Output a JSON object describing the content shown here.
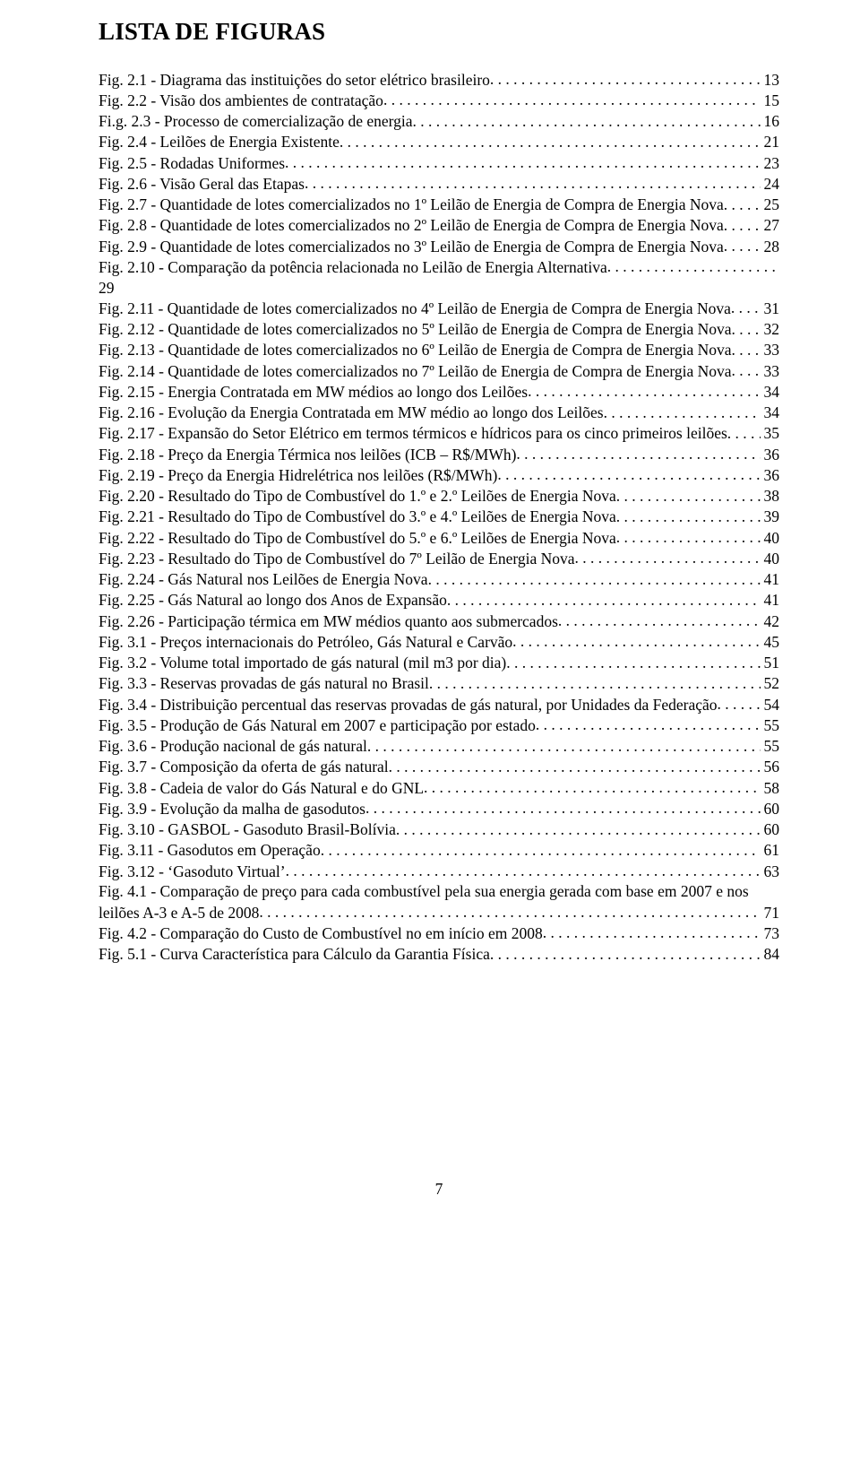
{
  "title": "LISTA DE FIGURAS",
  "page_number": "7",
  "font": {
    "family": "Times New Roman",
    "title_size_pt": 20,
    "body_size_pt": 13,
    "title_weight": "bold"
  },
  "colors": {
    "text": "#000000",
    "background": "#ffffff"
  },
  "entries": [
    {
      "label": "Fig. 2.1 - Diagrama das instituições do setor elétrico brasileiro",
      "page": "13"
    },
    {
      "label": "Fig. 2.2 - Visão dos ambientes de contratação ",
      "page": "15"
    },
    {
      "label": "Fi.g. 2.3 - Processo de comercialização de energia ",
      "page": "16"
    },
    {
      "label": "Fig. 2.4 - Leilões de Energia Existente",
      "page": "21"
    },
    {
      "label": "Fig. 2.5 - Rodadas Uniformes ",
      "page": "23"
    },
    {
      "label": "Fig. 2.6 - Visão Geral das Etapas ",
      "page": "24"
    },
    {
      "label": "Fig. 2.7 - Quantidade de lotes comercializados no 1º Leilão de Energia de Compra de Energia Nova",
      "page": "25"
    },
    {
      "label": "Fig. 2.8 - Quantidade de lotes comercializados no 2º Leilão de Energia de Compra de Energia Nova",
      "page": "27"
    },
    {
      "label": "Fig. 2.9 - Quantidade de lotes comercializados no 3º Leilão de Energia de Compra de Energia Nova",
      "page": "28"
    },
    {
      "label_line1": "Fig. 2.10 - Comparação da potência relacionada no Leilão de Energia Alternativa",
      "label_line2": "29",
      "page": "",
      "two_line": true
    },
    {
      "label": "Fig. 2.11 - Quantidade de lotes comercializados no 4º Leilão de Energia de Compra de Energia Nova",
      "page": "31"
    },
    {
      "label": "Fig. 2.12 - Quantidade de lotes comercializados no 5º Leilão de Energia de Compra de Energia Nova",
      "page": "32"
    },
    {
      "label": "Fig. 2.13 - Quantidade de lotes comercializados no 6º Leilão de Energia de Compra de Energia Nova",
      "page": "33"
    },
    {
      "label": "Fig. 2.14 - Quantidade de lotes comercializados no 7º Leilão de Energia de Compra de Energia Nova",
      "page": "33",
      "tight": true
    },
    {
      "label": "Fig. 2.15 - Energia Contratada em MW médios ao longo dos Leilões",
      "page": "34"
    },
    {
      "label": "Fig. 2.16 - Evolução da Energia Contratada em MW médio ao longo dos Leilões",
      "page": "34"
    },
    {
      "label": "Fig. 2.17 - Expansão do Setor Elétrico em termos térmicos e hídricos para os cinco primeiros leilões ",
      "page": "35"
    },
    {
      "label": "Fig. 2.18 - Preço da Energia Térmica nos leilões (ICB – R$/MWh) ",
      "page": "36"
    },
    {
      "label": "Fig. 2.19 - Preço da Energia Hidrelétrica nos leilões (R$/MWh)",
      "page": "36"
    },
    {
      "label": "Fig. 2.20 - Resultado do Tipo de Combustível do 1.º e 2.º Leilões de Energia Nova ",
      "page": "38"
    },
    {
      "label": "Fig. 2.21 - Resultado do Tipo de Combustível do 3.º e 4.º Leilões de Energia Nova ",
      "page": "39"
    },
    {
      "label": "Fig. 2.22 - Resultado do Tipo de Combustível do 5.º e 6.º Leilões de Energia Nova ",
      "page": "40"
    },
    {
      "label": "Fig. 2.23 - Resultado do Tipo de Combustível do 7º Leilão de Energia Nova",
      "page": "40"
    },
    {
      "label": "Fig. 2.24 - Gás Natural nos Leilões de Energia Nova ",
      "page": "41"
    },
    {
      "label": "Fig. 2.25 - Gás Natural ao longo dos Anos de Expansão",
      "page": "41"
    },
    {
      "label": "Fig. 2.26 - Participação térmica em MW médios quanto aos submercados",
      "page": "42"
    },
    {
      "label": "Fig. 3.1 - Preços internacionais do Petróleo, Gás Natural e Carvão ",
      "page": "45"
    },
    {
      "label": "Fig. 3.2 - Volume total importado de gás natural (mil m3 por dia) ",
      "page": "51"
    },
    {
      "label": "Fig. 3.3 - Reservas provadas de gás natural no Brasil ",
      "page": "52"
    },
    {
      "label": "Fig. 3.4 - Distribuição percentual das reservas provadas de gás natural, por Unidades da Federação",
      "page": "54"
    },
    {
      "label": "Fig. 3.5 - Produção de Gás Natural em 2007 e participação por estado",
      "page": "55"
    },
    {
      "label": "Fig. 3.6 - Produção nacional de gás natural ",
      "page": "55"
    },
    {
      "label": "Fig. 3.7 - Composição da oferta de gás natural",
      "page": "56"
    },
    {
      "label": "Fig. 3.8 - Cadeia de valor do Gás Natural e do GNL",
      "page": "58"
    },
    {
      "label": "Fig. 3.9 - Evolução da malha de gasodutos ",
      "page": "60"
    },
    {
      "label": "Fig. 3.10 - GASBOL - Gasoduto Brasil-Bolívia",
      "page": "60"
    },
    {
      "label": "Fig. 3.11 - Gasodutos em Operação ",
      "page": "61"
    },
    {
      "label": "Fig. 3.12 - ‘Gasoduto Virtual’ ",
      "page": "63"
    },
    {
      "label_line1": "Fig. 4.1 - Comparação de preço para cada combustível pela sua energia gerada com base em 2007 e nos",
      "label_line2": "leilões A-3 e A-5 de 2008",
      "page": "71",
      "two_line_dots": true
    },
    {
      "label": "Fig. 4.2 - Comparação do Custo de Combustível no em início em  2008",
      "page": "73"
    },
    {
      "label": "Fig. 5.1 - Curva Característica para Cálculo da Garantia Física",
      "page": "84"
    }
  ]
}
